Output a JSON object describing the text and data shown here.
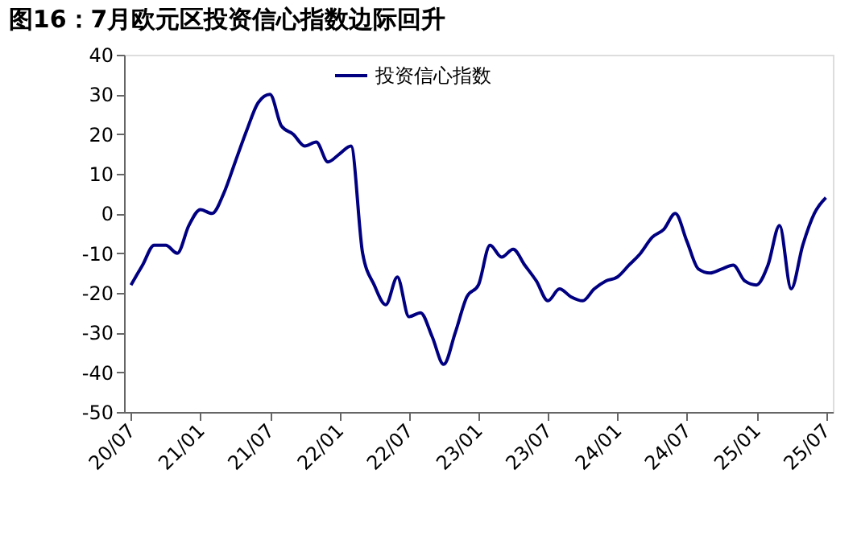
{
  "chart_data": {
    "type": "line",
    "title": "图16：7月欧元区投资信心指数边际回升",
    "categories": [
      "20/07",
      null,
      null,
      null,
      null,
      null,
      "21/01",
      null,
      null,
      null,
      null,
      null,
      "21/07",
      null,
      null,
      null,
      null,
      null,
      "22/01",
      null,
      null,
      null,
      null,
      null,
      "22/07",
      null,
      null,
      null,
      null,
      null,
      "23/01",
      null,
      null,
      null,
      null,
      null,
      "23/07",
      null,
      null,
      null,
      null,
      null,
      "24/01",
      null,
      null,
      null,
      null,
      null,
      "24/07",
      null,
      null,
      null,
      null,
      null,
      "25/01",
      null,
      null,
      null,
      null,
      null,
      "25/07"
    ],
    "series": [
      {
        "name": "投资信心指数",
        "color": "#000080",
        "values": [
          -18,
          -13,
          -8,
          -8,
          -10,
          -3,
          1,
          0,
          5,
          13,
          21,
          28,
          30,
          22,
          20,
          17,
          18,
          13,
          15,
          17,
          -10,
          -18,
          -23,
          -16,
          -26,
          -25,
          -31,
          -38,
          -30,
          -21,
          -18,
          -8,
          -11,
          -9,
          -13,
          -17,
          -22,
          -19,
          -21,
          -22,
          -19,
          -17,
          -16,
          -13,
          -10,
          -6,
          -4,
          0,
          -7,
          -14,
          -15,
          -14,
          -13,
          -17,
          -18,
          -13,
          -3,
          -19,
          -8,
          0,
          4
        ]
      }
    ],
    "ylim": [
      -50,
      40
    ],
    "yticks": [
      -50,
      -40,
      -30,
      -20,
      -10,
      0,
      10,
      20,
      30,
      40
    ],
    "legend": "top",
    "grid": false,
    "line_style": "solid",
    "marker": "none"
  }
}
